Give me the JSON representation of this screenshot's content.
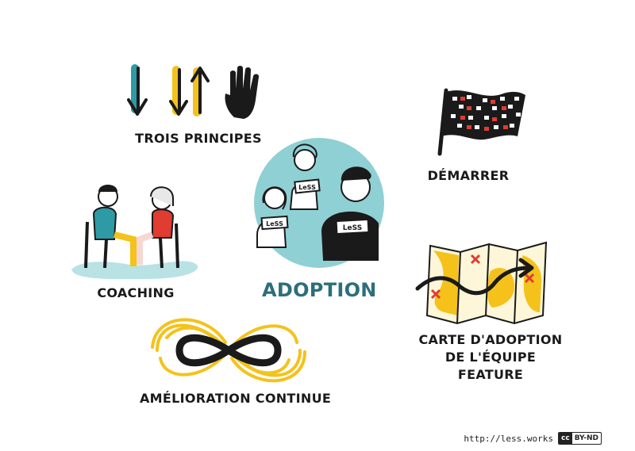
{
  "nodes": {
    "principles": {
      "label": "TROIS PRINCIPES"
    },
    "start": {
      "label": "DÉMARRER"
    },
    "adoption": {
      "label": "ADOPTION",
      "shirt_text": "LeSS"
    },
    "coaching": {
      "label": "COACHING"
    },
    "map": {
      "label_line1": "CARTE D'ADOPTION",
      "label_line2": "DE L'ÉQUIPE FEATURE"
    },
    "improvement": {
      "label": "AMÉLIORATION CONTINUE"
    }
  },
  "footer": {
    "url": "http://less.works",
    "license_cc": "cc",
    "license": "BY-ND"
  },
  "colors": {
    "teal": "#2e9aa6",
    "light_teal": "#8fd0d4",
    "yellow": "#f4c21b",
    "red": "#e03c31",
    "black": "#1a1a1a"
  }
}
